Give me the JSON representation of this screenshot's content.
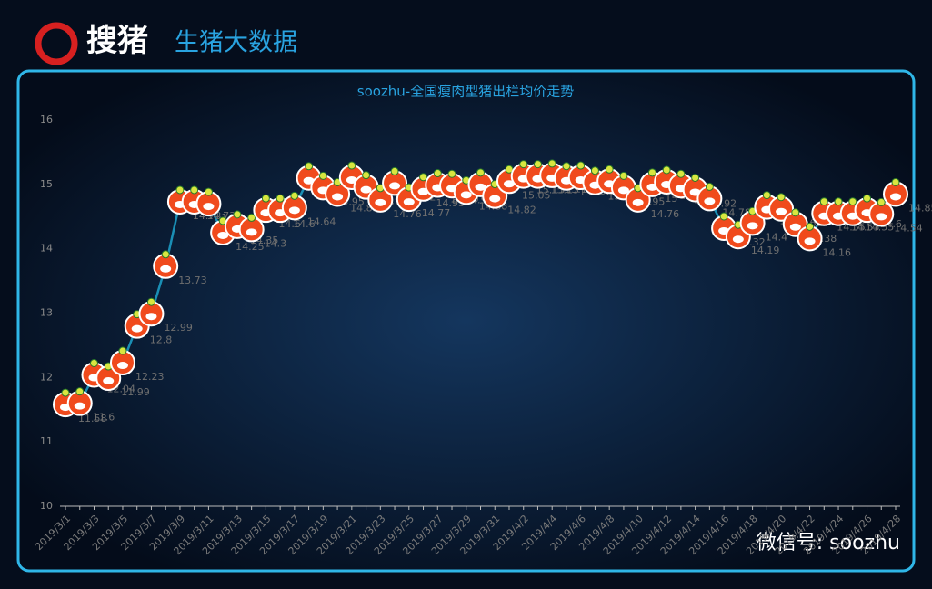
{
  "header": {
    "logo": "搜猪",
    "subtitle": "生猪大数据"
  },
  "watermark": "微信号: soozhu",
  "chart_data": {
    "type": "line",
    "title": "soozhu-全国瘦肉型猪出栏均价走势",
    "categories": [
      "2019/3/1",
      null,
      "2019/3/3",
      null,
      "2019/3/5",
      null,
      "2019/3/7",
      null,
      "2019/3/9",
      null,
      "2019/3/11",
      null,
      "2019/3/13",
      null,
      "2019/3/15",
      null,
      "2019/3/17",
      null,
      "2019/3/19",
      null,
      "2019/3/21",
      null,
      "2019/3/23",
      null,
      "2019/3/25",
      null,
      "2019/3/27",
      null,
      "2019/3/29",
      null,
      "2019/3/31",
      null,
      "2019/4/2",
      null,
      "2019/4/4",
      null,
      "2019/4/6",
      null,
      "2019/4/8",
      null,
      "2019/4/10",
      null,
      "2019/4/12",
      null,
      "2019/4/14",
      null,
      "2019/4/16",
      null,
      "2019/4/18",
      null,
      "2019/4/20",
      null,
      "2019/4/22",
      null,
      "2019/4/24",
      null,
      "2019/4/26",
      null,
      "2019/4/28"
    ],
    "values": [
      11.58,
      11.6,
      12.04,
      11.99,
      12.23,
      12.8,
      12.99,
      13.73,
      14.73,
      14.73,
      14.7,
      14.25,
      14.35,
      14.3,
      14.6,
      14.6,
      14.64,
      15.1,
      14.95,
      14.85,
      15.11,
      14.96,
      14.76,
      15.02,
      14.77,
      14.93,
      14.99,
      14.98,
      14.88,
      15.0,
      14.82,
      15.05,
      15.13,
      15.13,
      15.14,
      15.1,
      15.11,
      15.03,
      15.05,
      14.95,
      14.76,
      15.0,
      15.04,
      14.98,
      14.92,
      14.78,
      14.32,
      14.19,
      14.4,
      14.65,
      14.62,
      14.38,
      14.16,
      14.55,
      14.55,
      14.55,
      14.6,
      14.54,
      14.85
    ],
    "color": "#1a8fb5",
    "marker_color": "#f04a1c",
    "ylim": [
      10,
      16
    ],
    "yticks": [
      10,
      11,
      12,
      13,
      14,
      15,
      16
    ]
  }
}
